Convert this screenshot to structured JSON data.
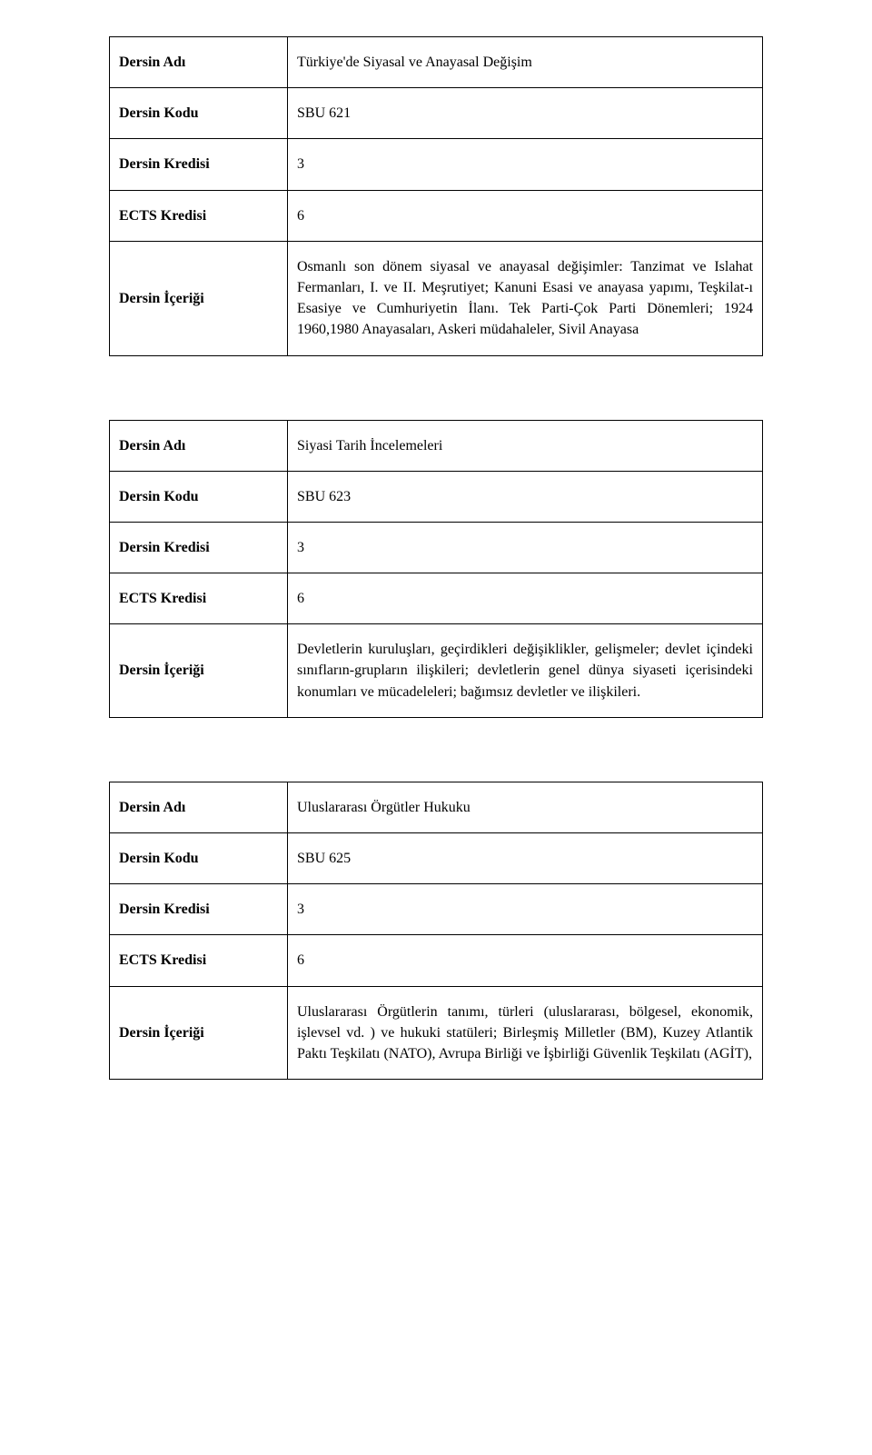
{
  "labels": {
    "name": "Dersin Adı",
    "code": "Dersin Kodu",
    "credit": "Dersin Kredisi",
    "ects": "ECTS Kredisi",
    "content": "Dersin İçeriği"
  },
  "courses": [
    {
      "name": "Türkiye'de Siyasal ve Anayasal Değişim",
      "code": "SBU 621",
      "credit": "3",
      "ects": "6",
      "content": "Osmanlı son dönem siyasal ve anayasal değişimler: Tanzimat ve Islahat Fermanları,  I. ve II. Meşrutiyet; Kanuni Esasi ve anayasa yapımı, Teşkilat-ı Esasiye ve Cumhuriyetin İlanı. Tek Parti-Çok Parti Dönemleri; 1924 1960,1980 Anayasaları, Askeri müdahaleler, Sivil Anayasa"
    },
    {
      "name": "Siyasi Tarih İncelemeleri",
      "code": "SBU 623",
      "credit": "3",
      "ects": "6",
      "content": "Devletlerin kuruluşları, geçirdikleri değişiklikler, gelişmeler; devlet içindeki sınıfların-grupların ilişkileri; devletlerin genel dünya siyaseti içerisindeki konumları ve mücadeleleri; bağımsız devletler ve ilişkileri."
    },
    {
      "name": "Uluslararası Örgütler Hukuku",
      "code": "SBU 625",
      "credit": "3",
      "ects": "6",
      "content": "Uluslararası Örgütlerin tanımı, türleri (uluslararası, bölgesel, ekonomik, işlevsel vd. ) ve hukuki statüleri; Birleşmiş Milletler (BM), Kuzey Atlantik Paktı Teşkilatı (NATO), Avrupa Birliği ve İşbirliği Güvenlik Teşkilatı (AGİT),"
    }
  ]
}
